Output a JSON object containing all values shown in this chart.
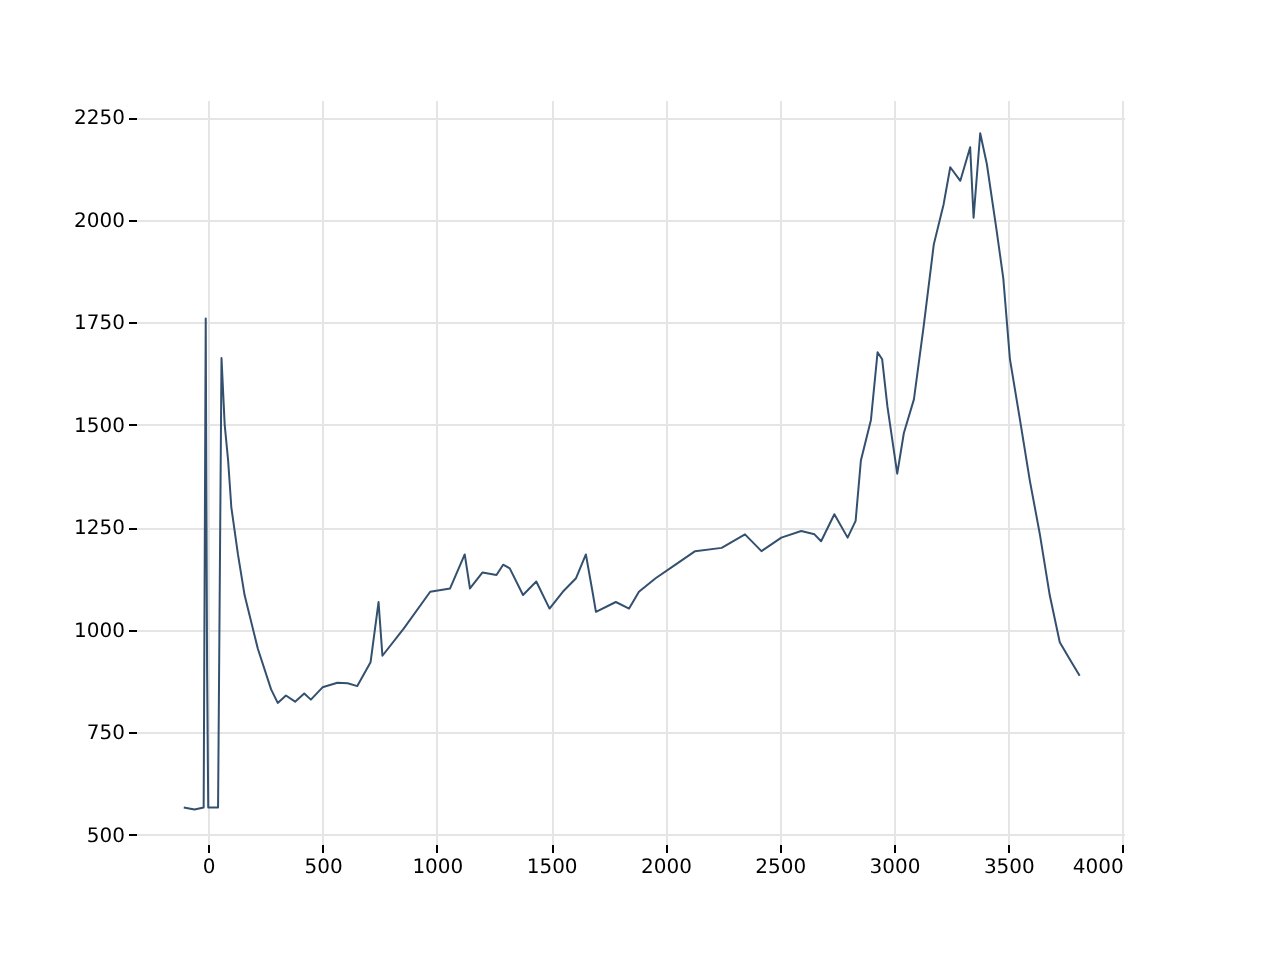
{
  "chart_data": {
    "type": "line",
    "xlim": [
      -316,
      4006
    ],
    "ylim": [
      478,
      2292
    ],
    "xticks": [
      0,
      500,
      1000,
      1500,
      2000,
      2500,
      3000,
      3500,
      4000
    ],
    "yticks": [
      500,
      750,
      1000,
      1250,
      1500,
      1750,
      2000,
      2250
    ],
    "grid": true,
    "marker": "none",
    "line_style": "solid",
    "series": [
      {
        "color": "#34506f",
        "x": [
          -107,
          -60,
          -20,
          -11,
          -5,
          0,
          20,
          43,
          58,
          72,
          87,
          101,
          130,
          159,
          217,
          275,
          304,
          340,
          380,
          420,
          449,
          500,
          565,
          610,
          652,
          710,
          745,
          762,
          855,
          971,
          1058,
          1122,
          1145,
          1200,
          1261,
          1290,
          1319,
          1377,
          1435,
          1493,
          1551,
          1609,
          1652,
          1681,
          1696,
          1783,
          1841,
          1884,
          1957,
          2044,
          2130,
          2246,
          2348,
          2420,
          2507,
          2594,
          2652,
          2681,
          2739,
          2797,
          2832,
          2855,
          2899,
          2928,
          2948,
          2971,
          3014,
          3043,
          3087,
          3130,
          3174,
          3217,
          3246,
          3290,
          3333,
          3348,
          3377,
          3406,
          3449,
          3478,
          3507,
          3551,
          3594,
          3638,
          3681,
          3725,
          3768,
          3812
        ],
        "values": [
          567,
          562,
          567,
          1759,
          900,
          567,
          567,
          567,
          1663,
          1500,
          1413,
          1299,
          1184,
          1085,
          954,
          855,
          822,
          840,
          825,
          845,
          830,
          860,
          871,
          870,
          863,
          921,
          1068,
          937,
          1003,
          1093,
          1101,
          1184,
          1101,
          1140,
          1134,
          1159,
          1150,
          1085,
          1118,
          1052,
          1093,
          1126,
          1184,
          1093,
          1044,
          1068,
          1052,
          1093,
          1126,
          1159,
          1192,
          1200,
          1233,
          1192,
          1225,
          1241,
          1233,
          1216,
          1282,
          1225,
          1266,
          1413,
          1512,
          1677,
          1660,
          1545,
          1381,
          1480,
          1562,
          1742,
          1940,
          2038,
          2128,
          2095,
          2177,
          2005,
          2211,
          2136,
          1973,
          1857,
          1660,
          1512,
          1364,
          1233,
          1085,
          970,
          929,
          888
        ]
      }
    ]
  }
}
